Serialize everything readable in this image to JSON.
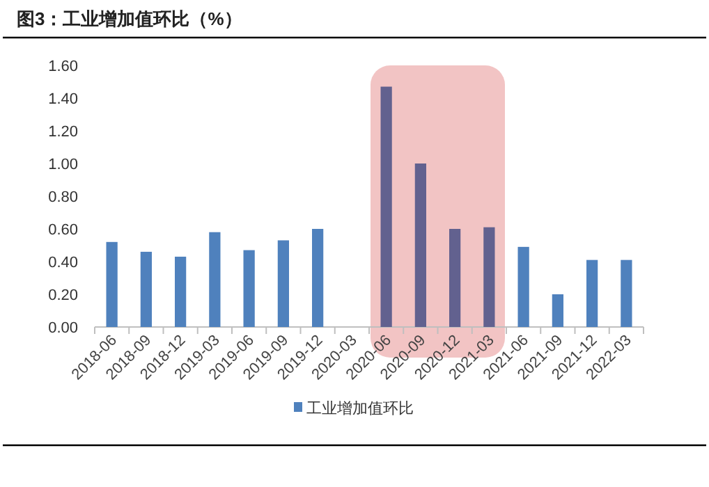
{
  "chart_data": {
    "type": "bar",
    "title": "图3：工业增加值环比（%）",
    "categories": [
      "2018-06",
      "2018-09",
      "2018-12",
      "2019-03",
      "2019-06",
      "2019-09",
      "2019-12",
      "2020-03",
      "2020-06",
      "2020-09",
      "2020-12",
      "2021-03",
      "2021-06",
      "2021-09",
      "2021-12",
      "2022-03"
    ],
    "series": [
      {
        "name": "工业增加值环比",
        "color": "#4f81bd",
        "colors": [
          "#4f81bd",
          "#4f81bd",
          "#4f81bd",
          "#4f81bd",
          "#4f81bd",
          "#4f81bd",
          "#4f81bd",
          null,
          "#62618f",
          "#62618f",
          "#62618f",
          "#62618f",
          "#4f81bd",
          "#4f81bd",
          "#4f81bd",
          "#4f81bd"
        ],
        "values": [
          0.52,
          0.46,
          0.43,
          0.58,
          0.47,
          0.53,
          0.6,
          null,
          1.47,
          1.0,
          0.6,
          0.61,
          0.49,
          0.2,
          0.41,
          0.41
        ]
      }
    ],
    "ylim": [
      0,
      1.6
    ],
    "yticks": [
      {
        "value": 0,
        "label": "0.00"
      },
      {
        "value": 0.2,
        "label": "0.20"
      },
      {
        "value": 0.4,
        "label": "0.40"
      },
      {
        "value": 0.6,
        "label": "0.60"
      },
      {
        "value": 0.8,
        "label": "0.80"
      },
      {
        "value": 1.0,
        "label": "1.00"
      },
      {
        "value": 1.2,
        "label": "1.20"
      },
      {
        "value": 1.4,
        "label": "1.40"
      },
      {
        "value": 1.6,
        "label": "1.60"
      }
    ],
    "bands": [
      {
        "axis": "x",
        "from": "2020-06",
        "to": "2021-03",
        "color": "#f2c4c4"
      }
    ],
    "grid": false,
    "legend": "bottom"
  }
}
